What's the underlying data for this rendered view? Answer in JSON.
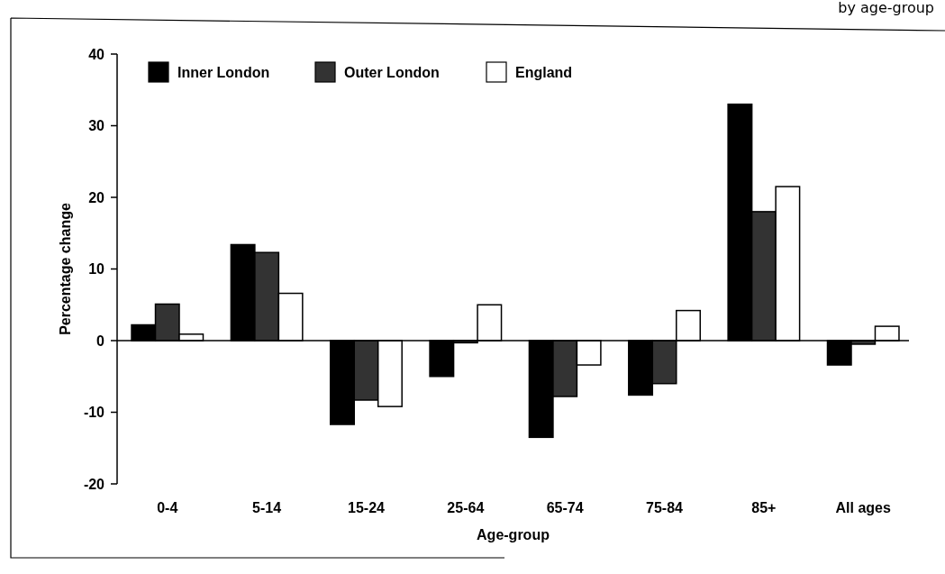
{
  "chart_data": {
    "type": "bar",
    "title": "by age-group",
    "xlabel": "Age-group",
    "ylabel": "Percentage change",
    "categories": [
      "0-4",
      "5-14",
      "15-24",
      "25-64",
      "65-74",
      "75-84",
      "85+",
      "All ages"
    ],
    "series": [
      {
        "name": "Inner London",
        "color": "#000000",
        "values": [
          2.2,
          13.4,
          -11.7,
          -5,
          -13.5,
          -7.6,
          33,
          -3.4
        ]
      },
      {
        "name": "Outer London",
        "color": "#333333",
        "values": [
          5.1,
          12.3,
          -8.3,
          -0.3,
          -7.8,
          -6,
          18,
          -0.5
        ]
      },
      {
        "name": "England",
        "color": "#ffffff",
        "values": [
          0.9,
          6.6,
          -9.2,
          5,
          -3.4,
          4.2,
          21.5,
          2
        ]
      }
    ],
    "ylim": [
      -20,
      40
    ],
    "yticks": [
      -20,
      -10,
      0,
      10,
      20,
      30,
      40
    ],
    "legend": "top left"
  }
}
